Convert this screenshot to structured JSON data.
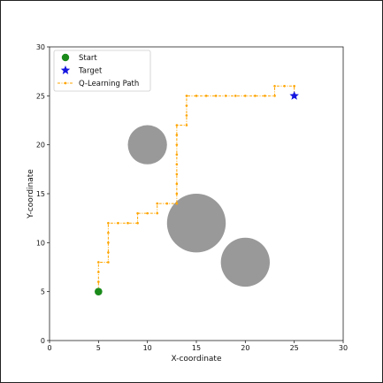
{
  "chart_data": {
    "type": "scatter",
    "xlabel": "X-coordinate",
    "ylabel": "Y-coordinate",
    "xlim": [
      0,
      30
    ],
    "ylim": [
      0,
      30
    ],
    "xticks": [
      "0",
      "5",
      "10",
      "15",
      "20",
      "25",
      "30"
    ],
    "yticks": [
      "0",
      "5",
      "10",
      "15",
      "20",
      "25",
      "30"
    ],
    "grid": false,
    "legend_position": "top-left",
    "legend": [
      {
        "label": "Start",
        "marker": "circle",
        "color": "#1a8a1a"
      },
      {
        "label": "Target",
        "marker": "star",
        "color": "#1515e0"
      },
      {
        "label": "Q-Learning Path",
        "marker": "line-dot",
        "color": "#ffa500"
      }
    ],
    "start": {
      "x": 5,
      "y": 5
    },
    "target": {
      "x": 25,
      "y": 25
    },
    "obstacles": [
      {
        "x": 10,
        "y": 20,
        "r": 2,
        "color": "#999999"
      },
      {
        "x": 15,
        "y": 12,
        "r": 3,
        "color": "#999999"
      },
      {
        "x": 20,
        "y": 8,
        "r": 2.5,
        "color": "#999999"
      }
    ],
    "path": {
      "name": "Q-Learning Path",
      "color": "#ffa500",
      "points": [
        [
          5,
          5
        ],
        [
          5,
          6
        ],
        [
          5,
          7
        ],
        [
          5,
          8
        ],
        [
          6,
          8
        ],
        [
          6,
          9
        ],
        [
          6,
          10
        ],
        [
          6,
          11
        ],
        [
          6,
          12
        ],
        [
          7,
          12
        ],
        [
          8,
          12
        ],
        [
          9,
          12
        ],
        [
          9,
          13
        ],
        [
          10,
          13
        ],
        [
          11,
          13
        ],
        [
          11,
          14
        ],
        [
          12,
          14
        ],
        [
          13,
          14
        ],
        [
          13,
          15
        ],
        [
          13,
          16
        ],
        [
          13,
          17
        ],
        [
          13,
          18
        ],
        [
          13,
          19
        ],
        [
          13,
          20
        ],
        [
          13,
          21
        ],
        [
          13,
          22
        ],
        [
          14,
          22
        ],
        [
          14,
          23
        ],
        [
          14,
          24
        ],
        [
          14,
          25
        ],
        [
          15,
          25
        ],
        [
          16,
          25
        ],
        [
          17,
          25
        ],
        [
          18,
          25
        ],
        [
          19,
          25
        ],
        [
          20,
          25
        ],
        [
          21,
          25
        ],
        [
          22,
          25
        ],
        [
          23,
          25
        ],
        [
          23,
          26
        ],
        [
          24,
          26
        ],
        [
          25,
          26
        ],
        [
          25,
          25
        ]
      ]
    }
  }
}
